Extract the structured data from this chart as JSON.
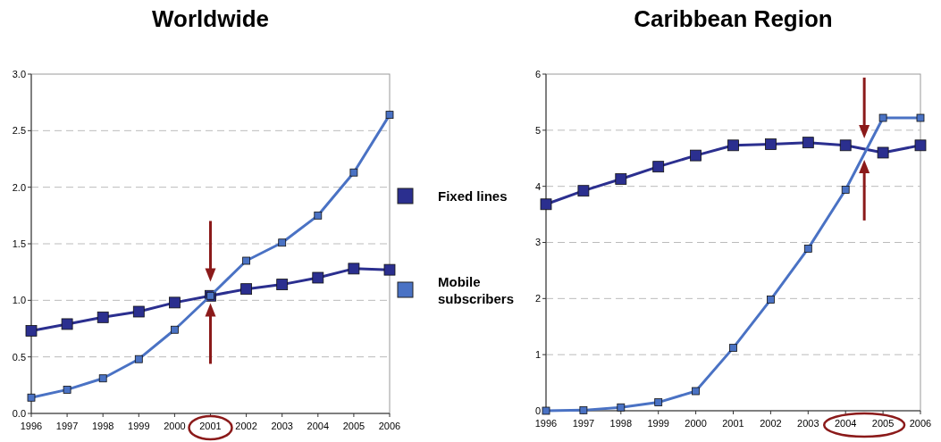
{
  "chart_data": [
    {
      "type": "line",
      "title": "Worldwide",
      "categories": [
        "1996",
        "1997",
        "1998",
        "1999",
        "2000",
        "2001",
        "2002",
        "2003",
        "2004",
        "2005",
        "2006"
      ],
      "series": [
        {
          "name": "Fixed lines",
          "color": "#2b2f8f",
          "values": [
            0.73,
            0.79,
            0.85,
            0.9,
            0.98,
            1.04,
            1.1,
            1.14,
            1.2,
            1.28,
            1.27
          ]
        },
        {
          "name": "Mobile subscribers",
          "color": "#4a72c4",
          "values": [
            0.14,
            0.21,
            0.31,
            0.48,
            0.74,
            1.04,
            1.35,
            1.51,
            1.75,
            2.13,
            2.64
          ]
        }
      ],
      "ylim": [
        0,
        3
      ],
      "yticks": [
        {
          "value": 0,
          "label": "0.0"
        },
        {
          "value": 0.5,
          "label": "0.5"
        },
        {
          "value": 1,
          "label": "1.0"
        },
        {
          "value": 1.5,
          "label": "1.5"
        },
        {
          "value": 2,
          "label": "2.0"
        },
        {
          "value": 2.5,
          "label": "2.5"
        },
        {
          "value": 3,
          "label": "3.0"
        }
      ],
      "grid": "y",
      "legend": "right",
      "marker": "square"
    },
    {
      "type": "line",
      "title": "Caribbean Region",
      "categories": [
        "1996",
        "1997",
        "1998",
        "1999",
        "2000",
        "2001",
        "2002",
        "2003",
        "2004",
        "2005",
        "2006"
      ],
      "series": [
        {
          "color": "#2b2f8f",
          "values": [
            3.68,
            3.92,
            4.13,
            4.35,
            4.55,
            4.73,
            4.75,
            4.78,
            4.73,
            4.6,
            4.73
          ]
        },
        {
          "color": "#4a72c4",
          "values": [
            0,
            0.01,
            0.06,
            0.15,
            0.35,
            1.12,
            1.98,
            2.89,
            3.94,
            5.22,
            5.22
          ]
        }
      ],
      "ylim": [
        0,
        6
      ],
      "yticks": [
        0,
        1,
        2,
        3,
        4,
        5,
        6
      ],
      "grid": "y",
      "marker": "square"
    }
  ]
}
